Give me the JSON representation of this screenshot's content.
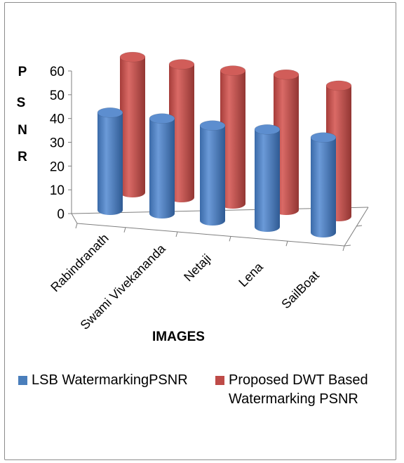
{
  "chart_data": {
    "type": "bar",
    "style": "3d-cylinder",
    "categories": [
      "Rabindranath",
      "Swami Vivekananda",
      "Netaji",
      "Lena",
      "SailBoat"
    ],
    "series": [
      {
        "name": "LSB WatermarkingPSNR",
        "values": [
          41,
          40,
          40,
          41,
          40
        ],
        "color": "#4a7ebb"
      },
      {
        "name": "Proposed DWT  Based Watermarking PSNR",
        "values": [
          57,
          56,
          56,
          57,
          55
        ],
        "color": "#be4b48"
      }
    ],
    "ylim": [
      0,
      60
    ],
    "yticks": [
      0,
      10,
      20,
      30,
      40,
      50,
      60
    ],
    "ylabel": [
      "P",
      "S",
      "N",
      "R"
    ],
    "xlabel": "IMAGES",
    "legend": "bottom",
    "grid": false
  }
}
